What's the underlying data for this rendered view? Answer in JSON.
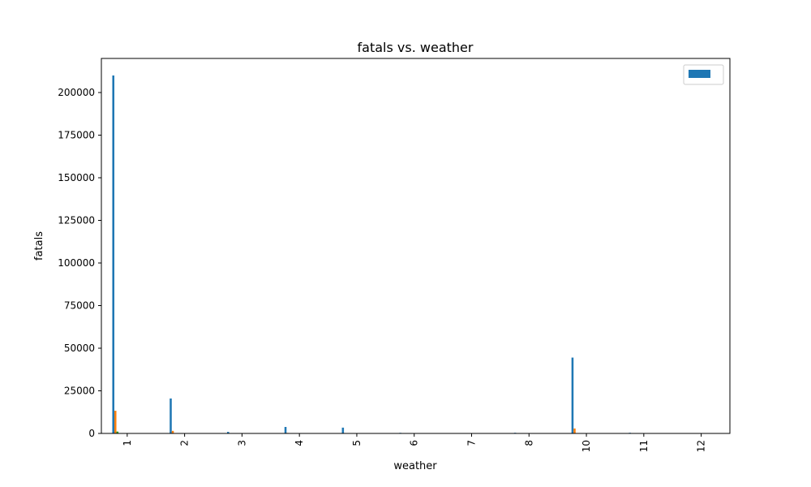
{
  "chart_data": {
    "type": "bar",
    "title": "fatals vs. weather",
    "xlabel": "weather",
    "ylabel": "fatals",
    "categories": [
      "1",
      "2",
      "3",
      "4",
      "5",
      "6",
      "7",
      "8",
      "10",
      "11",
      "12"
    ],
    "series": [
      {
        "name": "",
        "color": "#1f77b4",
        "values": [
          210000,
          20500,
          900,
          3800,
          3400,
          350,
          0,
          380,
          44500,
          380,
          0
        ]
      },
      {
        "name": "",
        "color": "#ff7f0e",
        "values": [
          13300,
          1500,
          100,
          300,
          250,
          50,
          0,
          50,
          2900,
          50,
          0
        ]
      },
      {
        "name": "",
        "color": "#2ca02c",
        "values": [
          1100,
          150,
          20,
          40,
          30,
          10,
          0,
          10,
          200,
          10,
          0
        ]
      },
      {
        "name": "",
        "color": "#d62728",
        "values": [
          200,
          30,
          0,
          10,
          5,
          0,
          0,
          0,
          40,
          0,
          0
        ]
      },
      {
        "name": "",
        "color": "#9467bd",
        "values": [
          80,
          10,
          0,
          0,
          0,
          0,
          0,
          0,
          15,
          0,
          0
        ]
      }
    ],
    "ylim": [
      0,
      220000
    ],
    "yticks": [
      0,
      25000,
      50000,
      75000,
      100000,
      125000,
      150000,
      175000,
      200000
    ],
    "xtick_rotation": 90,
    "grid": false,
    "legend": {
      "placement": "top-right"
    }
  }
}
